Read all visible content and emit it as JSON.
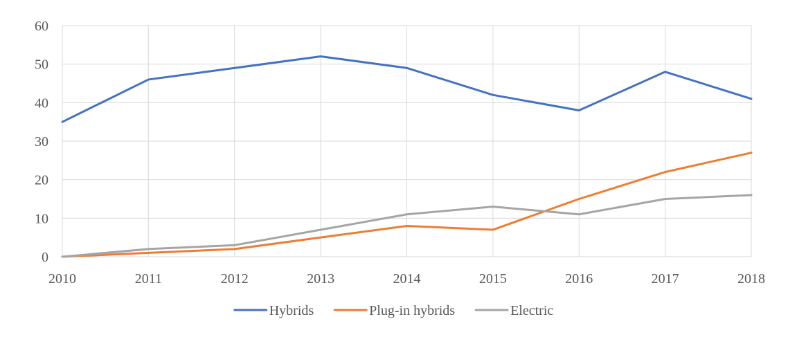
{
  "chart_data": {
    "type": "line",
    "title": "",
    "xlabel": "",
    "ylabel": "",
    "categories": [
      "2010",
      "2011",
      "2012",
      "2013",
      "2014",
      "2015",
      "2016",
      "2017",
      "2018"
    ],
    "ylim": [
      0,
      60
    ],
    "yticks": [
      0,
      10,
      20,
      30,
      40,
      50,
      60
    ],
    "grid": true,
    "legend": "bottom",
    "series": [
      {
        "name": "Hybrids",
        "color": "#4472c4",
        "values": [
          35,
          46,
          49,
          52,
          49,
          42,
          38,
          48,
          41
        ]
      },
      {
        "name": "Plug-in hybrids",
        "color": "#ed7d31",
        "values": [
          0,
          1,
          2,
          5,
          8,
          7,
          15,
          22,
          27
        ]
      },
      {
        "name": "Electric",
        "color": "#a5a5a5",
        "values": [
          0,
          2,
          3,
          7,
          11,
          13,
          11,
          15,
          16
        ]
      }
    ]
  }
}
